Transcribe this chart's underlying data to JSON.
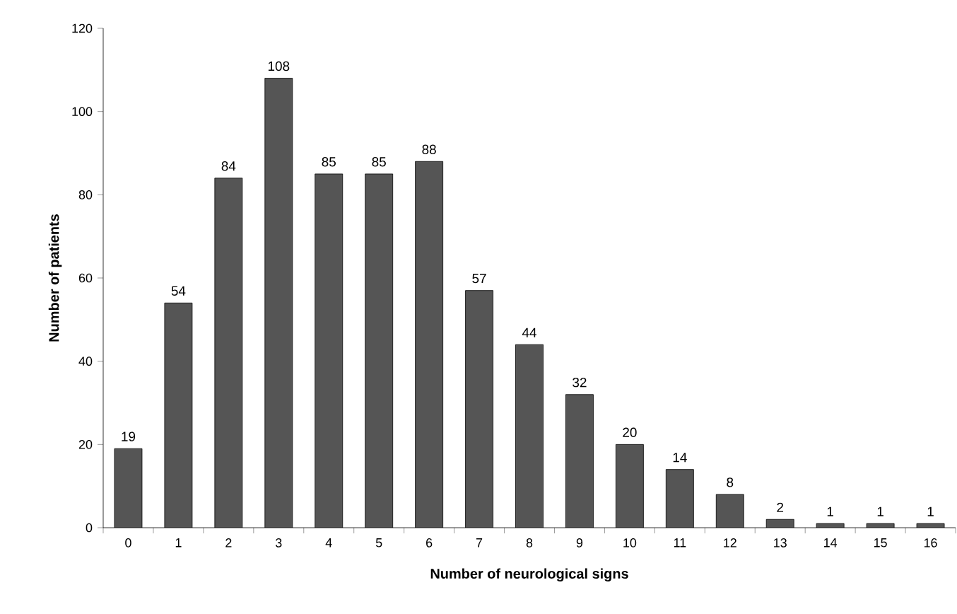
{
  "chart_data": {
    "type": "bar",
    "xlabel": "Number of neurological signs",
    "ylabel": "Number of patients",
    "categories": [
      "0",
      "1",
      "2",
      "3",
      "4",
      "5",
      "6",
      "7",
      "8",
      "9",
      "10",
      "11",
      "12",
      "13",
      "14",
      "15",
      "16"
    ],
    "values": [
      19,
      54,
      84,
      108,
      85,
      85,
      88,
      57,
      44,
      32,
      20,
      14,
      8,
      2,
      1,
      1,
      1
    ],
    "color": "#555555",
    "data_labels": true,
    "ylim": [
      0,
      120
    ],
    "yticks": [
      0,
      20,
      40,
      60,
      80,
      100,
      120
    ]
  }
}
